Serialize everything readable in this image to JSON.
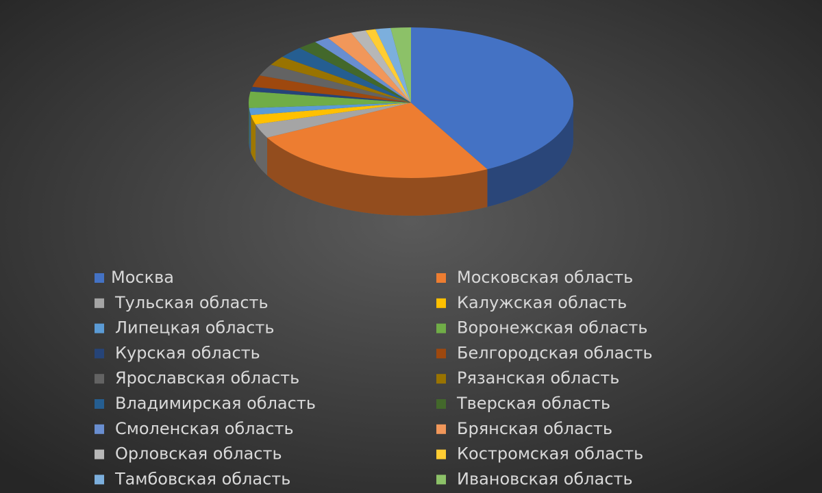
{
  "chart_data": {
    "type": "pie",
    "categories": [
      "Москва",
      "Московская область",
      "Тульская область",
      "Калужская область",
      "Липецкая область",
      "Воронежская область",
      "Курская область",
      "Белгородская область",
      "Ярославская область",
      "Рязанская область",
      "Владимирская область",
      "Тверская область",
      "Смоленская область",
      "Брянская область",
      "Орловская область",
      "Костромская область",
      "Тамбовская область",
      "Ивановская область"
    ],
    "values": [
      42,
      25,
      3,
      2,
      1.5,
      3.5,
      1,
      2.5,
      2.5,
      2,
      2.5,
      2,
      1.5,
      2.5,
      1.5,
      1,
      1.5,
      2
    ],
    "colors": [
      "#4472C4",
      "#ED7D31",
      "#A5A5A5",
      "#FFC000",
      "#5B9BD5",
      "#70AD47",
      "#264478",
      "#9E480E",
      "#636363",
      "#997300",
      "#255E91",
      "#43682B",
      "#698ED0",
      "#F1975A",
      "#B7B7B7",
      "#FFCD33",
      "#7CAFDD",
      "#8CC168"
    ],
    "legend": "bottom"
  }
}
